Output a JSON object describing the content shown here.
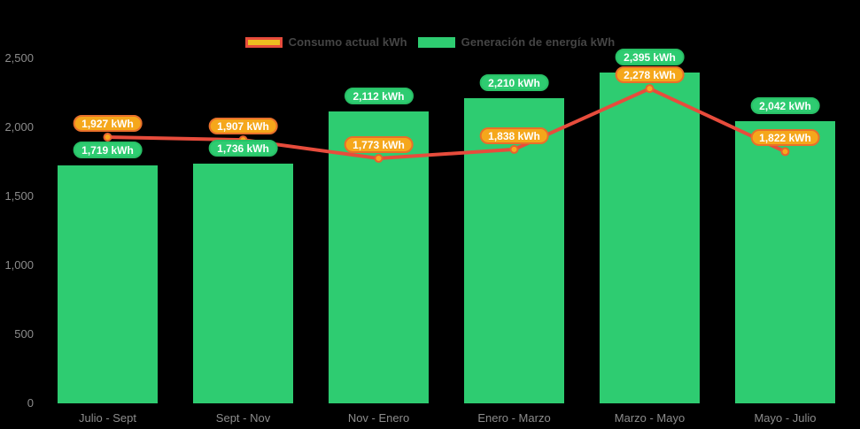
{
  "background_color": "#000000",
  "legend": {
    "position": "top-center",
    "items": [
      {
        "label": "Consumo actual kWh",
        "swatch_fill": "#eebc20",
        "swatch_border": "#e74c3c"
      },
      {
        "label": "Generación de energía kWh",
        "swatch_fill": "#2ecc71",
        "swatch_border": "#2ecc71"
      }
    ]
  },
  "chart_data": {
    "type": "bar+line",
    "title": "",
    "xlabel": "",
    "ylabel": "",
    "categories": [
      "Julio - Sept",
      "Sept - Nov",
      "Nov - Enero",
      "Enero - Marzo",
      "Marzo - Mayo",
      "Mayo - Julio"
    ],
    "series": [
      {
        "name": "Consumo actual kWh",
        "type": "line",
        "color": "#e74c3c",
        "marker_fill": "#f8a81d",
        "marker_border": "#e8622f",
        "label_fill": "#f5a71b",
        "label_border": "#e8702a",
        "values": [
          1927,
          1907,
          1773,
          1838,
          2278,
          1822
        ],
        "labels": [
          "1,927 kWh",
          "1,907 kWh",
          "1,773 kWh",
          "1,838 kWh",
          "2,278 kWh",
          "1,822 kWh"
        ]
      },
      {
        "name": "Generación de energía kWh",
        "type": "bar",
        "color": "#2ecc71",
        "label_fill": "#2ecc71",
        "label_border": "#28c066",
        "values": [
          1719,
          1736,
          2112,
          2210,
          2395,
          2042
        ],
        "labels": [
          "1,719 kWh",
          "1,736 kWh",
          "2,112 kWh",
          "2,210 kWh",
          "2,395 kWh",
          "2,042 kWh"
        ]
      }
    ],
    "ylim": [
      0,
      2500
    ],
    "yticks": [
      {
        "value": 0,
        "label": "0"
      },
      {
        "value": 500,
        "label": "500"
      },
      {
        "value": 1000,
        "label": "1,000"
      },
      {
        "value": 1500,
        "label": "1,500"
      },
      {
        "value": 2000,
        "label": "2,000"
      },
      {
        "value": 2500,
        "label": "2,500"
      }
    ],
    "grid": false,
    "legend_position": "top",
    "axis_text_color": "#8c8c8c"
  }
}
